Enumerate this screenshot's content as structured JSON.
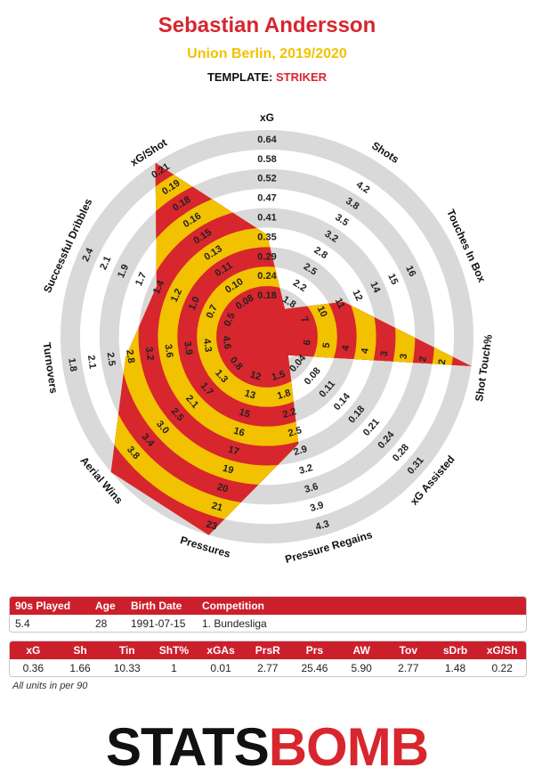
{
  "header": {
    "player_name": "Sebastian Andersson",
    "team_season": "Union Berlin, 2019/2020",
    "template_label": "TEMPLATE:",
    "template_value": "STRIKER"
  },
  "chart_data": {
    "type": "radar",
    "axes": [
      {
        "label": "xG",
        "ticks": [
          "0.18",
          "0.24",
          "0.29",
          "0.35",
          "0.41",
          "0.47",
          "0.52",
          "0.58",
          "0.64"
        ],
        "value": 0.36
      },
      {
        "label": "Shots",
        "ticks": [
          "1.8",
          "2.2",
          "2.5",
          "2.8",
          "3.2",
          "3.5",
          "3.8",
          "4.2"
        ],
        "value": 1.66
      },
      {
        "label": "Touches In Box",
        "ticks": [
          "7",
          "10",
          "11",
          "12",
          "14",
          "15",
          "16"
        ],
        "value": 10.33
      },
      {
        "label": "Shot Touch%",
        "ticks": [
          "6",
          "5",
          "4",
          "4",
          "3",
          "3",
          "2",
          "2"
        ],
        "value": 1
      },
      {
        "label": "xG Assisted",
        "ticks": [
          "0.04",
          "0.08",
          "0.11",
          "0.14",
          "0.18",
          "0.21",
          "0.24",
          "0.28",
          "0.31"
        ],
        "value": 0.01
      },
      {
        "label": "Pressure Regains",
        "ticks": [
          "1.5",
          "1.8",
          "2.2",
          "2.5",
          "2.9",
          "3.2",
          "3.6",
          "3.9",
          "4.3"
        ],
        "value": 2.77
      },
      {
        "label": "Pressures",
        "ticks": [
          "12",
          "13",
          "15",
          "16",
          "17",
          "19",
          "20",
          "21",
          "23"
        ],
        "value": 25.46
      },
      {
        "label": "Aerial Wins",
        "ticks": [
          "0.8",
          "1.3",
          "1.7",
          "2.1",
          "2.5",
          "3.0",
          "3.4",
          "3.8"
        ],
        "value": 5.9
      },
      {
        "label": "Turnovers",
        "ticks": [
          "4.6",
          "4.3",
          "3.9",
          "3.6",
          "3.2",
          "2.8",
          "2.5",
          "2.1",
          "1.8"
        ],
        "value": 2.77
      },
      {
        "label": "Successful Dribbles",
        "ticks": [
          "0.5",
          "0.7",
          "1.0",
          "1.2",
          "1.4",
          "1.7",
          "1.9",
          "2.1",
          "2.4"
        ],
        "value": 1.48
      },
      {
        "label": "xG/Shot",
        "ticks": [
          "0.08",
          "0.10",
          "0.11",
          "0.13",
          "0.15",
          "0.16",
          "0.18",
          "0.19",
          "0.21"
        ],
        "value": 0.22
      }
    ],
    "colors": {
      "primary": "#d7262e",
      "secondary": "#f2c200",
      "ring": "#d9d9d9"
    }
  },
  "info_table": {
    "headers": [
      "90s Played",
      "Age",
      "Birth Date",
      "Competition"
    ],
    "values": [
      "5.4",
      "28",
      "1991-07-15",
      "1. Bundesliga"
    ]
  },
  "stats_table": {
    "headers": [
      "xG",
      "Sh",
      "Tin",
      "ShT%",
      "xGAs",
      "PrsR",
      "Prs",
      "AW",
      "Tov",
      "sDrb",
      "xG/Sh"
    ],
    "values": [
      "0.36",
      "1.66",
      "10.33",
      "1",
      "0.01",
      "2.77",
      "25.46",
      "5.90",
      "2.77",
      "1.48",
      "0.22"
    ]
  },
  "footnote": "All units in per 90",
  "logo": {
    "part1": "STATS",
    "part2": "BOMB"
  }
}
